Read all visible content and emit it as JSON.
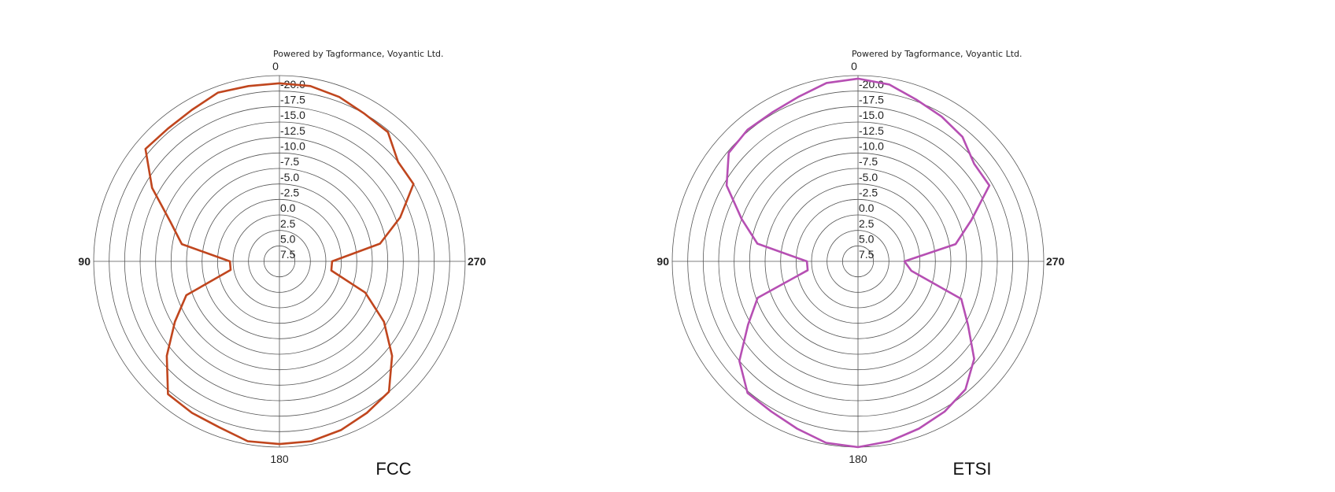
{
  "chart_data": [
    {
      "type": "polar-line",
      "caption": "FCC",
      "attribution": "Powered by Tagformance, Voyantic Ltd.",
      "radial_ticks": [
        "-20.0",
        "-17.5",
        "-15.0",
        "-12.5",
        "-10.0",
        "-7.5",
        "-5.0",
        "-2.5",
        "0.0",
        "2.5",
        "5.0",
        "7.5"
      ],
      "angle_labels": {
        "top": "0",
        "left": "90",
        "bottom": "180",
        "right": "270"
      },
      "rings": 12,
      "line_color": "#c0461e",
      "angles_deg": [
        0,
        10,
        20,
        30,
        40,
        50,
        60,
        70,
        80,
        90,
        100,
        110,
        120,
        130,
        140,
        150,
        160,
        170,
        180,
        190,
        200,
        210,
        220,
        230,
        240,
        250,
        260,
        270,
        280,
        290,
        300,
        310,
        320,
        330,
        340,
        350
      ],
      "ring_positions": [
        11.5,
        11.5,
        11.6,
        11.3,
        11.2,
        11.3,
        9.5,
        7.5,
        6.4,
        3.2,
        3.2,
        6.4,
        7.8,
        9.5,
        11.2,
        11.3,
        11.4,
        11.8,
        11.8,
        11.8,
        11.6,
        11.3,
        11.0,
        9.5,
        7.8,
        5.9,
        3.4,
        3.4,
        6.6,
        8.3,
        10.0,
        10.0,
        10.9,
        11.0,
        11.3,
        11.5
      ]
    },
    {
      "type": "polar-line",
      "caption": "ETSI",
      "attribution": "Powered by Tagformance, Voyantic Ltd.",
      "radial_ticks": [
        "-20.0",
        "-17.5",
        "-15.0",
        "-12.5",
        "-10.0",
        "-7.5",
        "-5.0",
        "-2.5",
        "0.0",
        "2.5",
        "5.0",
        "7.5"
      ],
      "angle_labels": {
        "top": "0",
        "left": "90",
        "bottom": "180",
        "right": "270"
      },
      "rings": 12,
      "line_color": "#b64fb3",
      "angles_deg": [
        0,
        10,
        20,
        30,
        40,
        50,
        60,
        70,
        80,
        90,
        100,
        110,
        120,
        130,
        140,
        150,
        160,
        170,
        180,
        190,
        200,
        210,
        220,
        230,
        240,
        250,
        260,
        270,
        280,
        290,
        300,
        310,
        320,
        330,
        340,
        350
      ],
      "ring_positions": [
        11.8,
        11.7,
        11.3,
        11.1,
        11.1,
        10.9,
        9.8,
        8.0,
        6.6,
        3.3,
        3.3,
        6.9,
        8.2,
        10.0,
        11.1,
        11.2,
        11.5,
        11.9,
        12.0,
        11.8,
        11.5,
        11.2,
        10.8,
        9.8,
        8.2,
        7.1,
        3.5,
        3.0,
        6.4,
        7.8,
        9.8,
        9.8,
        10.5,
        10.8,
        11.1,
        11.6
      ]
    }
  ]
}
